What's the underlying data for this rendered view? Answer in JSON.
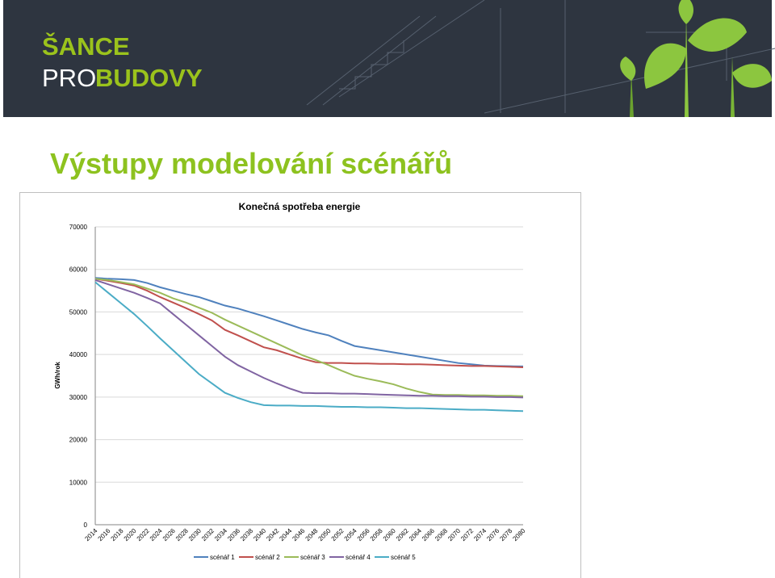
{
  "header": {
    "logo_top": "ŠANCE",
    "logo_pro": "PRO",
    "logo_budovy": "BUDOVY"
  },
  "slide_title": "Výstupy modelování scénářů",
  "chart_data": {
    "type": "line",
    "title": "Konečná spotřeba energie",
    "y_label": "GWh/rok",
    "categories": [
      "2014",
      "2016",
      "2018",
      "2020",
      "2022",
      "2024",
      "2026",
      "2028",
      "2030",
      "2032",
      "2034",
      "2036",
      "2038",
      "2040",
      "2042",
      "2044",
      "2046",
      "2048",
      "2050",
      "2052",
      "2054",
      "2056",
      "2058",
      "2060",
      "2062",
      "2064",
      "2066",
      "2068",
      "2070",
      "2072",
      "2074",
      "2076",
      "2078",
      "2080"
    ],
    "ylim": [
      0,
      70000
    ],
    "yticks": [
      0,
      10000,
      20000,
      30000,
      40000,
      50000,
      60000,
      70000
    ],
    "grid": true,
    "legend": "bottom",
    "series": [
      {
        "name": "scénář 1",
        "color": "#4f81bd",
        "values": [
          58000,
          57800,
          57700,
          57500,
          56800,
          55800,
          55000,
          54200,
          53500,
          52500,
          51500,
          50800,
          49900,
          49000,
          48000,
          47000,
          46000,
          45200,
          44500,
          43200,
          42000,
          41500,
          41000,
          40500,
          40000,
          39500,
          39000,
          38500,
          38000,
          37700,
          37400,
          37300,
          37250,
          37200
        ]
      },
      {
        "name": "scénář 2",
        "color": "#c0504d",
        "values": [
          57800,
          57300,
          56800,
          56200,
          55000,
          53500,
          52200,
          50900,
          49500,
          48000,
          45800,
          44500,
          43100,
          41700,
          41000,
          40000,
          39000,
          38200,
          38000,
          38000,
          37900,
          37900,
          37800,
          37800,
          37700,
          37700,
          37600,
          37500,
          37400,
          37300,
          37300,
          37200,
          37100,
          37000
        ]
      },
      {
        "name": "scénář 3",
        "color": "#9bbb59",
        "values": [
          57800,
          57500,
          57000,
          56500,
          55500,
          54500,
          53200,
          52200,
          51000,
          49800,
          48200,
          46800,
          45400,
          44000,
          42600,
          41200,
          39800,
          38700,
          37500,
          36200,
          35000,
          34300,
          33700,
          33000,
          32000,
          31200,
          30600,
          30500,
          30500,
          30400,
          30400,
          30300,
          30300,
          30200
        ]
      },
      {
        "name": "scénář 4",
        "color": "#8064a2",
        "values": [
          57500,
          56500,
          55500,
          54500,
          53300,
          52000,
          49500,
          47000,
          44500,
          42000,
          39500,
          37500,
          36000,
          34500,
          33200,
          32000,
          31000,
          30900,
          30900,
          30800,
          30800,
          30700,
          30600,
          30500,
          30400,
          30300,
          30300,
          30200,
          30200,
          30100,
          30100,
          30000,
          30000,
          29900
        ]
      },
      {
        "name": "scénář 5",
        "color": "#4bacc6",
        "values": [
          57000,
          54500,
          52000,
          49500,
          46700,
          43800,
          41000,
          38200,
          35400,
          33200,
          31000,
          29800,
          28800,
          28100,
          28000,
          28000,
          27900,
          27900,
          27800,
          27700,
          27700,
          27600,
          27600,
          27500,
          27400,
          27400,
          27300,
          27200,
          27100,
          27000,
          27000,
          26900,
          26800,
          26700
        ]
      }
    ]
  }
}
